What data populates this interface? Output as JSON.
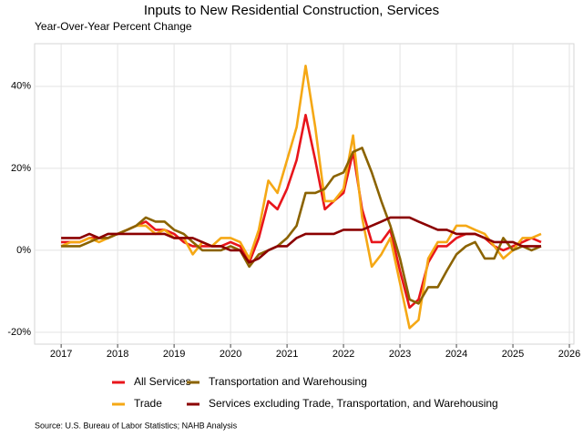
{
  "chart_data": {
    "type": "line",
    "title": "Inputs to New Residential Construction, Services",
    "y_label": "Year-Over-Year Percent Change",
    "source": "Source: U.S. Bureau of Labor Statistics; NAHB Analysis",
    "x": [
      2017,
      2017.17,
      2017.33,
      2017.5,
      2017.67,
      2017.83,
      2018,
      2018.17,
      2018.33,
      2018.5,
      2018.67,
      2018.83,
      2019,
      2019.17,
      2019.33,
      2019.5,
      2019.67,
      2019.83,
      2020,
      2020.17,
      2020.33,
      2020.5,
      2020.67,
      2020.83,
      2021,
      2021.17,
      2021.33,
      2021.5,
      2021.67,
      2021.83,
      2022,
      2022.17,
      2022.33,
      2022.5,
      2022.67,
      2022.83,
      2023,
      2023.17,
      2023.33,
      2023.5,
      2023.67,
      2023.83,
      2024,
      2024.17,
      2024.33,
      2024.5,
      2024.67,
      2024.83,
      2025,
      2025.17,
      2025.33,
      2025.5
    ],
    "series": [
      {
        "name": "All Services",
        "color": "#e8151b",
        "values": [
          2,
          2,
          2,
          3,
          3,
          3,
          4,
          5,
          6,
          7,
          5,
          5,
          4,
          2,
          1,
          1,
          1,
          1,
          2,
          1,
          -3,
          3,
          12,
          10,
          15,
          22,
          33,
          22,
          10,
          12,
          14,
          24,
          10,
          2,
          2,
          5,
          -5,
          -14,
          -12,
          -3,
          1,
          1,
          3,
          4,
          4,
          3,
          1,
          0,
          1,
          2,
          3,
          2
        ]
      },
      {
        "name": "Trade",
        "color": "#f5a815",
        "values": [
          1,
          2,
          2,
          3,
          2,
          3,
          4,
          5,
          6,
          6,
          4,
          5,
          3,
          3,
          -1,
          2,
          1,
          3,
          3,
          2,
          -2,
          5,
          17,
          14,
          22,
          30,
          45,
          30,
          12,
          12,
          15,
          28,
          8,
          -4,
          -1,
          3,
          -8,
          -19,
          -17,
          -2,
          2,
          2,
          6,
          6,
          5,
          4,
          1,
          -2,
          0,
          3,
          3,
          4
        ]
      },
      {
        "name": "Transportation and Warehousing",
        "color": "#8b6300",
        "values": [
          1,
          1,
          1,
          2,
          3,
          3,
          4,
          5,
          6,
          8,
          7,
          7,
          5,
          4,
          2,
          0,
          0,
          0,
          1,
          0,
          -4,
          -1,
          0,
          1,
          3,
          6,
          14,
          14,
          15,
          18,
          19,
          24,
          25,
          19,
          12,
          6,
          -2,
          -12,
          -13,
          -9,
          -9,
          -5,
          -1,
          1,
          2,
          -2,
          -2,
          3,
          0,
          1,
          0,
          1
        ]
      },
      {
        "name": "Services excluding Trade, Transportation, and Warehousing",
        "color": "#8b0000",
        "values": [
          3,
          3,
          3,
          4,
          3,
          4,
          4,
          4,
          4,
          4,
          4,
          4,
          3,
          3,
          3,
          2,
          1,
          1,
          0,
          0,
          -3,
          -2,
          0,
          1,
          1,
          3,
          4,
          4,
          4,
          4,
          5,
          5,
          5,
          6,
          7,
          8,
          8,
          8,
          7,
          6,
          5,
          5,
          4,
          4,
          4,
          3,
          2,
          2,
          2,
          1,
          1,
          1
        ]
      }
    ],
    "xlim": [
      2016.53,
      2026.08
    ],
    "xticks": [
      2017,
      2018,
      2019,
      2020,
      2021,
      2022,
      2023,
      2024,
      2025,
      2026
    ],
    "ylim": [
      -22.9,
      50.4
    ],
    "yticks": [
      {
        "value": -20,
        "label": "-20%"
      },
      {
        "value": 0,
        "label": "0%"
      },
      {
        "value": 20,
        "label": "20%"
      },
      {
        "value": 40,
        "label": "40%"
      }
    ],
    "grid": true
  }
}
